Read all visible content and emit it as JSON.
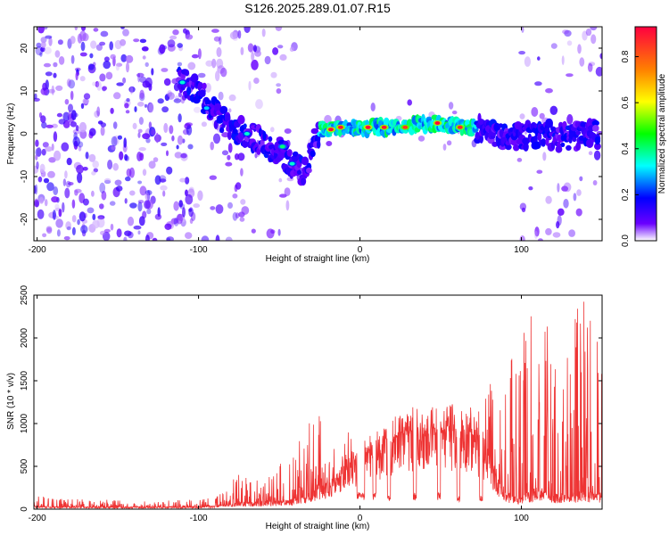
{
  "title": "S126.2025.289.01.07.R15",
  "chart_data": [
    {
      "type": "heatmap",
      "title": "S126.2025.289.01.07.R15",
      "xlabel": "Height of straight line (km)",
      "ylabel": "Frequency (Hz)",
      "xlim": [
        -202,
        150
      ],
      "ylim": [
        -25,
        25
      ],
      "xticks": [
        -200,
        -100,
        0,
        100
      ],
      "yticks": [
        -20,
        -10,
        0,
        10,
        20
      ],
      "colorbar": {
        "label": "Normalized spectral amplitude",
        "range": [
          0,
          0.93
        ],
        "ticks": [
          "0.0",
          "0.2",
          "0.4",
          "0.6",
          "0.8"
        ],
        "tick_values": [
          0.0,
          0.2,
          0.4,
          0.6,
          0.8
        ],
        "colormap": [
          "#ffffff",
          "#6a00ff",
          "#0000ff",
          "#00ffff",
          "#00ff00",
          "#ffff00",
          "#ff8000",
          "#ff0040"
        ]
      },
      "ridge": {
        "description": "strong spectral ridge",
        "points": [
          {
            "x": -110,
            "f": 12
          },
          {
            "x": -100,
            "f": 10
          },
          {
            "x": -90,
            "f": 5
          },
          {
            "x": -80,
            "f": 1
          },
          {
            "x": -70,
            "f": 0
          },
          {
            "x": -60,
            "f": -2
          },
          {
            "x": -50,
            "f": -4
          },
          {
            "x": -42,
            "f": -7
          },
          {
            "x": -35,
            "f": -9
          },
          {
            "x": -25,
            "f": 1
          },
          {
            "x": -20,
            "f": 1
          },
          {
            "x": -10,
            "f": 1.5
          },
          {
            "x": 0,
            "f": 1.5
          },
          {
            "x": 10,
            "f": 1.5
          },
          {
            "x": 20,
            "f": 1.5
          },
          {
            "x": 30,
            "f": 2
          },
          {
            "x": 45,
            "f": 2.5
          },
          {
            "x": 55,
            "f": 2
          },
          {
            "x": 65,
            "f": 1.5
          },
          {
            "x": 75,
            "f": 1
          },
          {
            "x": 85,
            "f": 0
          },
          {
            "x": 95,
            "f": -1
          },
          {
            "x": 110,
            "f": 0
          },
          {
            "x": 130,
            "f": -1
          },
          {
            "x": 148,
            "f": 0
          }
        ],
        "peaks": [
          {
            "x": -18,
            "f": 1,
            "v": 0.92
          },
          {
            "x": -12,
            "f": 1.5,
            "v": 0.9
          },
          {
            "x": 5,
            "f": 1.5,
            "v": 0.93
          },
          {
            "x": 15,
            "f": 1.5,
            "v": 0.9
          },
          {
            "x": 28,
            "f": 1.5,
            "v": 0.85
          },
          {
            "x": 48,
            "f": 2.5,
            "v": 0.92
          },
          {
            "x": 62,
            "f": 1.5,
            "v": 0.88
          },
          {
            "x": -110,
            "f": 12,
            "v": 0.35
          },
          {
            "x": -95,
            "f": 6,
            "v": 0.3
          },
          {
            "x": -70,
            "f": 0,
            "v": 0.35
          },
          {
            "x": -48,
            "f": -3,
            "v": 0.4
          },
          {
            "x": -42,
            "f": -7,
            "v": 0.35
          }
        ]
      }
    },
    {
      "type": "line",
      "xlabel": "Height of straight line (km)",
      "ylabel": "SNR (10 * v/v)",
      "xlim": [
        -202,
        150
      ],
      "ylim": [
        0,
        2500
      ],
      "xticks": [
        -200,
        -100,
        0,
        100
      ],
      "yticks": [
        0,
        500,
        1000,
        1500,
        2000,
        2500
      ],
      "series": [
        {
          "name": "SNR",
          "color": "#ee3333",
          "envelope": [
            {
              "x": -202,
              "base": 30,
              "peak": 180
            },
            {
              "x": -190,
              "base": 20,
              "peak": 120
            },
            {
              "x": -150,
              "base": 20,
              "peak": 110
            },
            {
              "x": -100,
              "base": 20,
              "peak": 110
            },
            {
              "x": -85,
              "base": 40,
              "peak": 200
            },
            {
              "x": -75,
              "base": 60,
              "peak": 480
            },
            {
              "x": -60,
              "base": 60,
              "peak": 300
            },
            {
              "x": -45,
              "base": 80,
              "peak": 650
            },
            {
              "x": -35,
              "base": 120,
              "peak": 950
            },
            {
              "x": -25,
              "base": 180,
              "peak": 1100
            },
            {
              "x": -15,
              "base": 300,
              "peak": 900
            },
            {
              "x": -5,
              "base": 500,
              "peak": 900
            },
            {
              "x": 10,
              "base": 650,
              "peak": 900
            },
            {
              "x": 25,
              "base": 850,
              "peak": 1050
            },
            {
              "x": 40,
              "base": 850,
              "peak": 1000
            },
            {
              "x": 55,
              "base": 900,
              "peak": 1100
            },
            {
              "x": 70,
              "base": 850,
              "peak": 1050
            },
            {
              "x": 80,
              "base": 500,
              "peak": 1450
            },
            {
              "x": 90,
              "base": 150,
              "peak": 1600
            },
            {
              "x": 100,
              "base": 100,
              "peak": 2000
            },
            {
              "x": 110,
              "base": 200,
              "peak": 2500
            },
            {
              "x": 120,
              "base": 120,
              "peak": 2300
            },
            {
              "x": 130,
              "base": 150,
              "peak": 2200
            },
            {
              "x": 140,
              "base": 150,
              "peak": 2500
            },
            {
              "x": 150,
              "base": 150,
              "peak": 2100
            }
          ],
          "dropouts": [
            {
              "x0": -2,
              "x1": 3,
              "v": 150
            },
            {
              "x0": 8,
              "x1": 10,
              "v": 150
            },
            {
              "x0": 17,
              "x1": 19,
              "v": 120
            },
            {
              "x0": 33,
              "x1": 35,
              "v": 150
            },
            {
              "x0": 48,
              "x1": 50,
              "v": 150
            },
            {
              "x0": 60,
              "x1": 62,
              "v": 120
            },
            {
              "x0": 74,
              "x1": 76,
              "v": 120
            }
          ],
          "note": "noisy SNR trace; envelope gives approximate local baseline and spike maxima"
        }
      ]
    }
  ]
}
